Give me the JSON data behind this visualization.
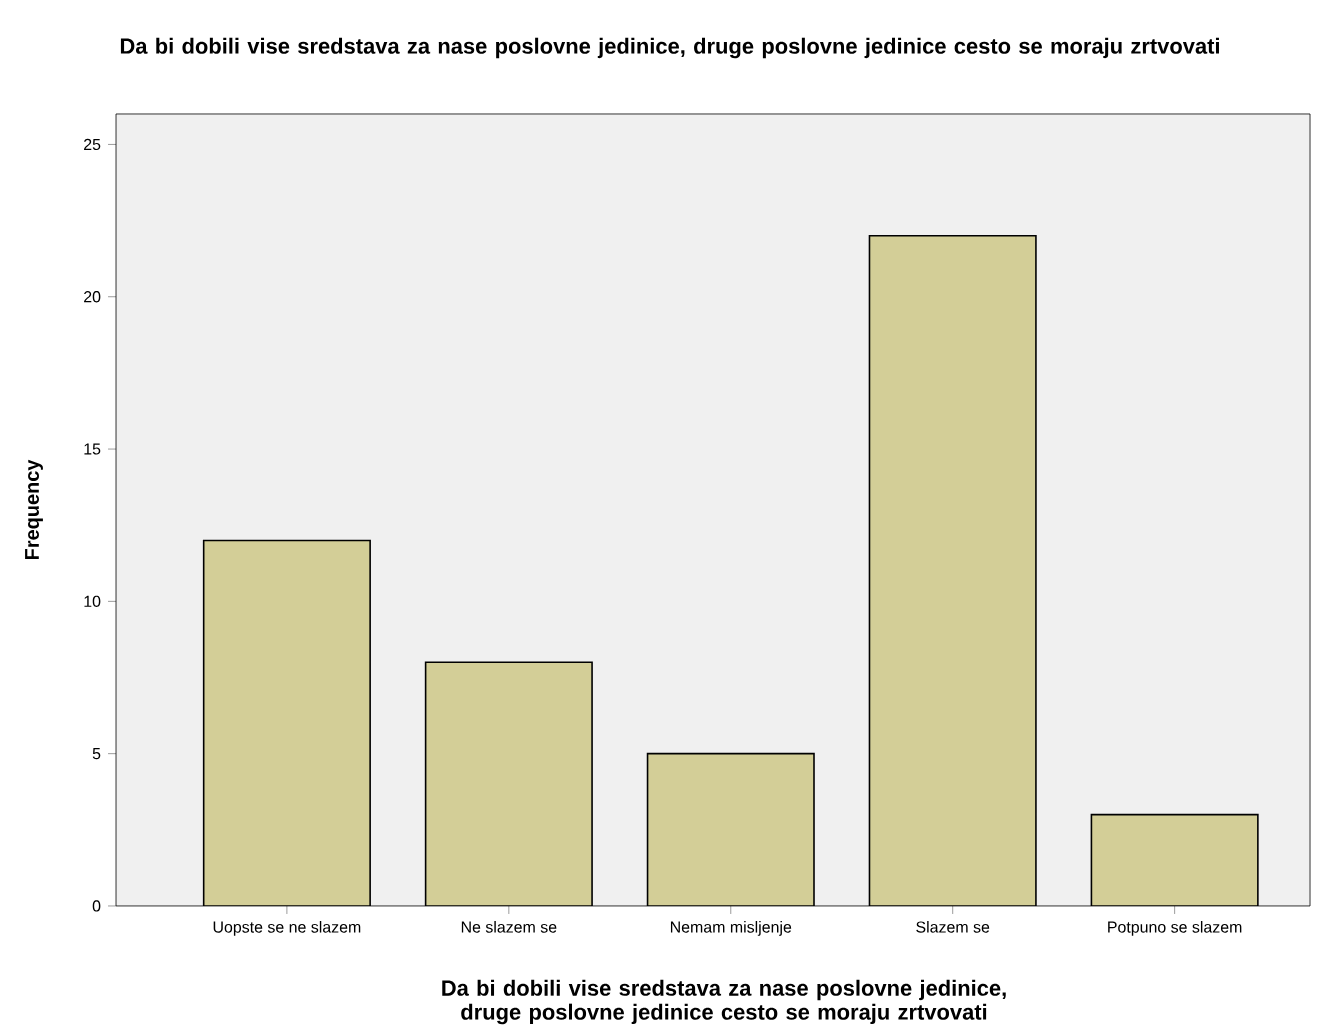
{
  "chart_data": {
    "type": "bar",
    "title": "Da bi dobili vise sredstava za nase poslovne jedinice, druge poslovne jedinice cesto se moraju zrtvovati",
    "xlabel": "Da bi dobili vise sredstava za nase poslovne jedinice, druge poslovne jedinice cesto se moraju zrtvovati",
    "ylabel": "Frequency",
    "categories": [
      "Uopste se ne slazem",
      "Ne slazem se",
      "Nemam misljenje",
      "Slazem se",
      "Potpuno se slazem"
    ],
    "values": [
      12,
      8,
      5,
      22,
      3
    ],
    "color": "#d3ce97",
    "ylim": [
      0,
      26
    ],
    "yticks": [
      0,
      5,
      10,
      15,
      20,
      25
    ],
    "grid": false
  }
}
